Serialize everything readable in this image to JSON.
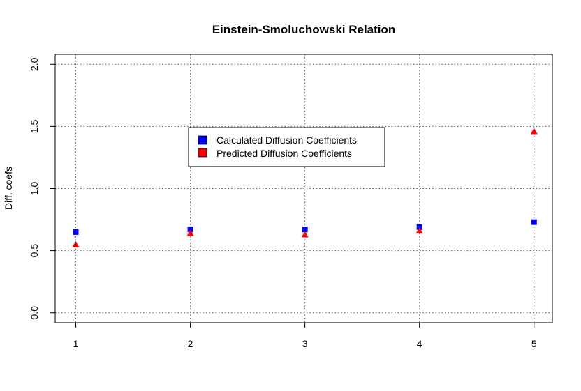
{
  "chart_data": {
    "type": "scatter",
    "title": "Einstein-Smoluchowski Relation",
    "xlabel": "",
    "ylabel": "Diff. coefs",
    "x": [
      1,
      2,
      3,
      4,
      5
    ],
    "xlim": [
      0.82,
      5.16
    ],
    "ylim": [
      -0.08,
      2.08
    ],
    "xticks": [
      "1",
      "2",
      "3",
      "4",
      "5"
    ],
    "yticks": [
      "0.0",
      "0.5",
      "1.0",
      "1.5",
      "2.0"
    ],
    "grid": true,
    "legend_position": "center",
    "series": [
      {
        "name": "Calculated Diffusion Coefficients",
        "marker": "square",
        "color": "#0000ff",
        "values": [
          0.65,
          0.67,
          0.67,
          0.69,
          0.73
        ]
      },
      {
        "name": "Predicted Diffusion Coefficients",
        "marker": "triangle",
        "color": "#ff0000",
        "values": [
          0.55,
          0.64,
          0.63,
          0.66,
          1.46
        ]
      }
    ]
  }
}
